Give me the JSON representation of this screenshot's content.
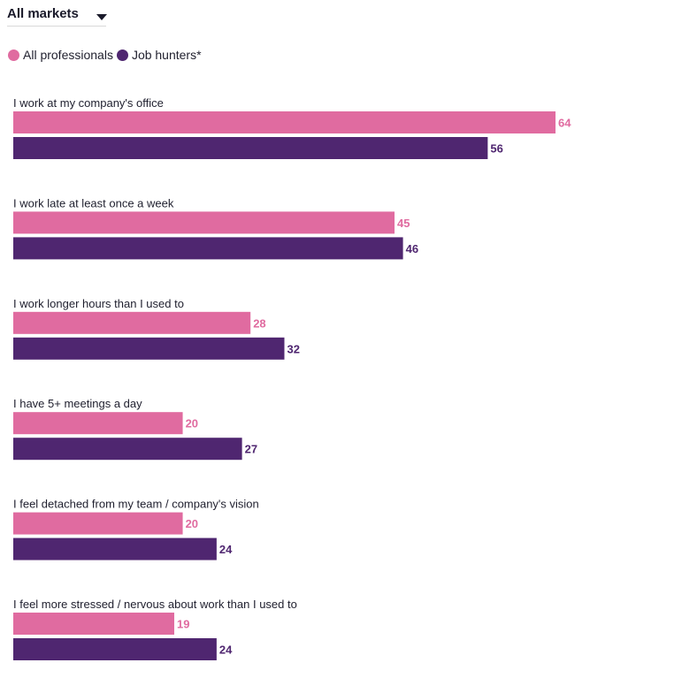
{
  "filter": {
    "label": "All markets",
    "icon": "caret-down-icon"
  },
  "colors": {
    "all_professionals": "#e06ba0",
    "job_hunters": "#4f2670"
  },
  "chart_data": {
    "type": "bar",
    "orientation": "horizontal",
    "title": "",
    "xlabel": "",
    "ylabel": "",
    "legend_placement": "top-left",
    "grid": false,
    "xlim": [
      0,
      64
    ],
    "categories": [
      "I work at my company's office",
      "I work late at least once a week",
      "I work longer hours than I used to",
      "I have 5+ meetings a day",
      "I feel detached from my team / company's vision",
      "I feel more stressed / nervous about work than I used to"
    ],
    "series": [
      {
        "name": "All professionals",
        "values": [
          64,
          45,
          28,
          20,
          20,
          19
        ]
      },
      {
        "name": "Job hunters*",
        "values": [
          56,
          46,
          32,
          27,
          24,
          24
        ]
      }
    ]
  }
}
